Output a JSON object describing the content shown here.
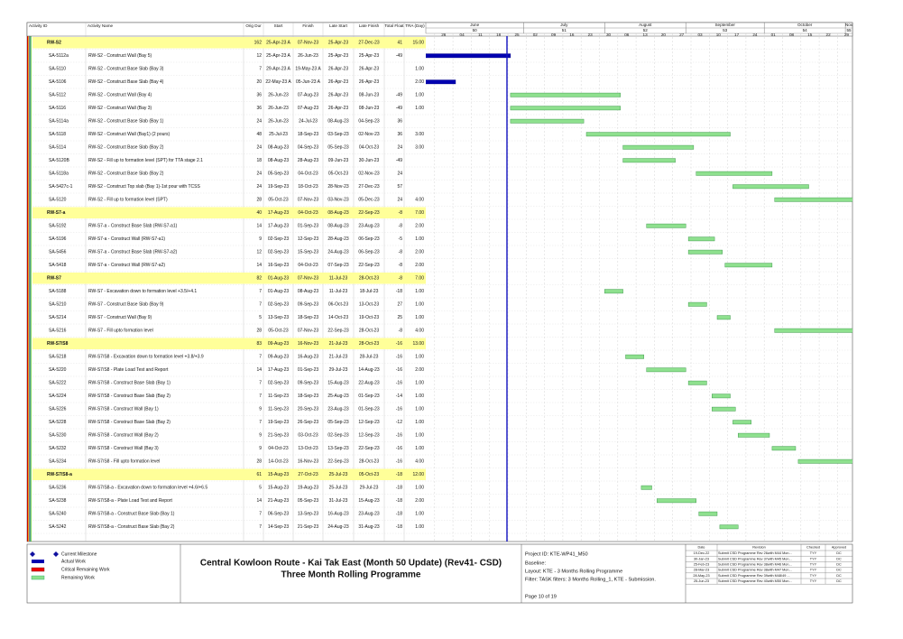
{
  "header": {
    "columns": [
      "Activity ID",
      "Activity Name",
      "Orig Dur",
      "Start",
      "Finish",
      "Late Start",
      "Late Finish",
      "Total Float",
      "TRA (Day)"
    ],
    "months": [
      "June",
      "July",
      "August",
      "September",
      "October",
      "Nov"
    ],
    "month_numbers": [
      "50",
      "51",
      "52",
      "53",
      "54",
      "55"
    ],
    "weeks": [
      "26",
      "04",
      "11",
      "18",
      "25",
      "02",
      "09",
      "16",
      "23",
      "30",
      "06",
      "13",
      "20",
      "27",
      "03",
      "10",
      "17",
      "24",
      "01",
      "08",
      "15",
      "22",
      "29"
    ]
  },
  "rows": [
    [
      "RW-S2",
      null,
      "162",
      "25-Apr-23 A",
      "07-Nov-23",
      "25-Apr-23",
      "27-Dec-23",
      "41",
      "15.00"
    ],
    [
      "SA-5112a",
      "RW-S2 - Construct Wall (Bay 5)",
      "12",
      "25-Apr-23 A",
      "26-Jun-23",
      "25-Apr-23",
      "25-Apr-23",
      "-49",
      null
    ],
    [
      "SA-5110",
      "RW-S2 - Construct Base Slab (Bay 3)",
      "7",
      "29-Apr-23 A",
      "19-May-23 A",
      "26-Apr-23",
      "26-Apr-23",
      null,
      "1.00"
    ],
    [
      "SA-5106",
      "RW-S2 - Construct Base Slab (Bay 4)",
      "20",
      "22-May-23 A",
      "05-Jun-23 A",
      "26-Apr-23",
      "26-Apr-23",
      null,
      "2.00"
    ],
    [
      "SA-5112",
      "RW-S2 - Construct Wall (Bay 4)",
      "36",
      "26-Jun-23",
      "07-Aug-23",
      "26-Apr-23",
      "08-Jun-23",
      "-49",
      "1.00"
    ],
    [
      "SA-5116",
      "RW-S2 - Construct Wall (Bay 3)",
      "36",
      "26-Jun-23",
      "07-Aug-23",
      "26-Apr-23",
      "08-Jun-23",
      "-49",
      "1.00"
    ],
    [
      "SA-5114a",
      "RW-S2 - Construct Base Slab (Bay 1)",
      "24",
      "26-Jun-23",
      "24-Jul-23",
      "08-Aug-23",
      "04-Sep-23",
      "36",
      null
    ],
    [
      "SA-5118",
      "RW-S2 - Construct Wall (Bay1) (2 pours)",
      "48",
      "25-Jul-23",
      "18-Sep-23",
      "03-Sep-23",
      "02-Nov-23",
      "36",
      "3.00"
    ],
    [
      "SA-5114",
      "RW-S2 - Construct Base Slab (Bay 2)",
      "24",
      "08-Aug-23",
      "04-Sep-23",
      "05-Sep-23",
      "04-Oct-23",
      "24",
      "3.00"
    ],
    [
      "SA-5120B",
      "RW-S2 - Fill up to formation level (SPT) for TTA stage 2.1",
      "18",
      "08-Aug-23",
      "28-Aug-23",
      "09-Jun-23",
      "30-Jun-23",
      "-49",
      null
    ],
    [
      "SA-5118a",
      "RW-S2 - Construct Base Slab (Bay 2)",
      "24",
      "05-Sep-23",
      "04-Oct-23",
      "05-Oct-23",
      "02-Nov-23",
      "24",
      null
    ],
    [
      "SA-5427c-1",
      "RW-S2 - Construct Top slab (Bay 1)-1st pour with TCSS",
      "24",
      "19-Sep-23",
      "18-Oct-23",
      "28-Nov-23",
      "27-Dec-23",
      "57",
      null
    ],
    [
      "SA-5120",
      "RW-S2 - Fill up to formation level (SPT)",
      "28",
      "05-Oct-23",
      "07-Nov-23",
      "03-Nov-23",
      "05-Dec-23",
      "24",
      "4.00"
    ],
    [
      "RW-S7-a",
      null,
      "40",
      "17-Aug-23",
      "04-Oct-23",
      "08-Aug-23",
      "22-Sep-23",
      "-8",
      "7.00"
    ],
    [
      "SA-5192",
      "RW-S7-a - Construct Base Slab (RW-S7-a1)",
      "14",
      "17-Aug-23",
      "01-Sep-23",
      "08-Aug-23",
      "23-Aug-23",
      "-8",
      "2.00"
    ],
    [
      "SA-5196",
      "RW-S7-a - Construct Wall (RW-S7-a1)",
      "9",
      "02-Sep-23",
      "12-Sep-23",
      "28-Aug-23",
      "06-Sep-23",
      "-5",
      "1.00"
    ],
    [
      "SA-5456",
      "RW-S7-a - Construct Base Slab (RW-S7-a2)",
      "12",
      "02-Sep-23",
      "15-Sep-23",
      "24-Aug-23",
      "06-Sep-23",
      "-8",
      "2.00"
    ],
    [
      "SA-5418",
      "RW-S7-a - Construct Wall (RW-S7-a2)",
      "14",
      "16-Sep-23",
      "04-Oct-23",
      "07-Sep-23",
      "22-Sep-23",
      "-8",
      "2.00"
    ],
    [
      "RW-S7",
      null,
      "82",
      "01-Aug-23",
      "07-Nov-23",
      "11-Jul-23",
      "28-Oct-23",
      "-8",
      "7.00"
    ],
    [
      "SA-5188",
      "RW-S7 - Excavation down to formation level +3.5/+4.1",
      "7",
      "01-Aug-23",
      "08-Aug-23",
      "11-Jul-23",
      "18-Jul-23",
      "-18",
      "1.00"
    ],
    [
      "SA-5210",
      "RW-S7 - Construct Base Slab (Bay 9)",
      "7",
      "02-Sep-23",
      "09-Sep-23",
      "06-Oct-23",
      "13-Oct-23",
      "27",
      "1.00"
    ],
    [
      "SA-5214",
      "RW-S7 - Construct Wall (Bay 9)",
      "5",
      "13-Sep-23",
      "18-Sep-23",
      "14-Oct-23",
      "19-Oct-23",
      "25",
      "1.00"
    ],
    [
      "SA-5216",
      "RW-S7 - Fill upto formation level",
      "28",
      "05-Oct-23",
      "07-Nov-23",
      "22-Sep-23",
      "28-Oct-23",
      "-8",
      "4.00"
    ],
    [
      "RW-S7/S8",
      null,
      "83",
      "09-Aug-23",
      "16-Nov-23",
      "21-Jul-23",
      "28-Oct-23",
      "-16",
      "13.00"
    ],
    [
      "SA-5218",
      "RW-S7/S8 - Excavation down to formation level +3.8/+3.9",
      "7",
      "09-Aug-23",
      "16-Aug-23",
      "21-Jul-23",
      "28-Jul-23",
      "-16",
      "1.00"
    ],
    [
      "SA-5220",
      "RW-S7/S8 - Plate Load Test and Report",
      "14",
      "17-Aug-23",
      "01-Sep-23",
      "29-Jul-23",
      "14-Aug-23",
      "-16",
      "2.00"
    ],
    [
      "SA-5222",
      "RW-S7/S8 - Construct Base Slab (Bay 1)",
      "7",
      "02-Sep-23",
      "09-Sep-23",
      "15-Aug-23",
      "22-Aug-23",
      "-16",
      "1.00"
    ],
    [
      "SA-5224",
      "RW-S7/S8 - Construct Base Slab (Bay 2)",
      "7",
      "11-Sep-23",
      "18-Sep-23",
      "25-Aug-23",
      "01-Sep-23",
      "-14",
      "1.00"
    ],
    [
      "SA-5226",
      "RW-S7/S8 - Construct Wall (Bay 1)",
      "9",
      "11-Sep-23",
      "20-Sep-23",
      "23-Aug-23",
      "01-Sep-23",
      "-16",
      "1.00"
    ],
    [
      "SA-5228",
      "RW-S7/S8 - Construct Base Slab (Bay 2)",
      "7",
      "19-Sep-23",
      "26-Sep-23",
      "05-Sep-23",
      "12-Sep-23",
      "-12",
      "1.00"
    ],
    [
      "SA-5230",
      "RW-S7/S8 - Construct Wall (Bay 2)",
      "9",
      "21-Sep-23",
      "03-Oct-23",
      "02-Sep-23",
      "12-Sep-23",
      "-16",
      "1.00"
    ],
    [
      "SA-5232",
      "RW-S7/S8 - Construct Wall (Bay 3)",
      "9",
      "04-Oct-23",
      "13-Oct-23",
      "13-Sep-23",
      "22-Sep-23",
      "-16",
      "1.00"
    ],
    [
      "SA-5234",
      "RW-S7/S8 - Fill upto formation level",
      "28",
      "14-Oct-23",
      "16-Nov-23",
      "22-Sep-23",
      "28-Oct-23",
      "-16",
      "4.00"
    ],
    [
      "RW-S7/S8-a",
      null,
      "61",
      "15-Aug-23",
      "27-Oct-23",
      "25-Jul-23",
      "05-Oct-23",
      "-18",
      "12.00"
    ],
    [
      "SA-5236",
      "RW-S7/S8-a - Excavation down to formation level +4.6/+6.5",
      "5",
      "15-Aug-23",
      "19-Aug-23",
      "25-Jul-23",
      "29-Jul-23",
      "-18",
      "1.00"
    ],
    [
      "SA-5238",
      "RW-S7/S8-a - Plate Load Test and Report",
      "14",
      "21-Aug-23",
      "05-Sep-23",
      "31-Jul-23",
      "15-Aug-23",
      "-18",
      "2.00"
    ],
    [
      "SA-5240",
      "RW-S7/S8-a - Construct Base Slab (Bay 1)",
      "7",
      "06-Sep-23",
      "13-Sep-23",
      "16-Aug-23",
      "23-Aug-23",
      "-18",
      "1.00"
    ],
    [
      "SA-5242",
      "RW-S7/S8-a - Construct Base Slab (Bay 2)",
      "7",
      "14-Sep-23",
      "21-Sep-23",
      "24-Aug-23",
      "31-Aug-23",
      "-18",
      "1.00"
    ]
  ],
  "legend": [
    "Current Milestone",
    "Actual Work",
    "Critical Remaining Work",
    "Remaining Work"
  ],
  "footer": {
    "title": "Central Kowloon Route - Kai Tak East (Month 50 Update) (Rev41- CSD)",
    "subtitle": "Three Month Rolling Programme",
    "info": [
      "Project ID: KTE-WP41_M50",
      "Baseline:",
      "Layout: KTE - 3 Months Rolling Programme",
      "Filter: TASK filters: 3 Months Rolling_1, KTE - Submission.",
      "Page 10 of 19"
    ]
  },
  "revisions": {
    "columns": [
      "Date",
      "Revision",
      "Checked",
      "Approved"
    ],
    "rows": [
      [
        "19-Dec-22",
        "Submit CSD Programme Rev 26with M44 Mon...",
        "TYY",
        "DC"
      ],
      [
        "30-Jan-23",
        "Submit CSD Programme Rev 37with M45 Mon...",
        "TYY",
        "DC"
      ],
      [
        "25-Feb-23",
        "Submit CSD Programme Rev 38with M46 Mon...",
        "TYY",
        "DC"
      ],
      [
        "28-Mar-23",
        "Submit CSD Programme Rev 38with M47 Mon...",
        "TYY",
        "DC"
      ],
      [
        "28-May-23",
        "Submit CSD Programme Rev 39with M48/49 ...",
        "TYY",
        "DC"
      ],
      [
        "25-Jun-23",
        "Submit CSD Programme Rev 40with M50 Mon...",
        "TYY",
        "DC"
      ]
    ]
  }
}
